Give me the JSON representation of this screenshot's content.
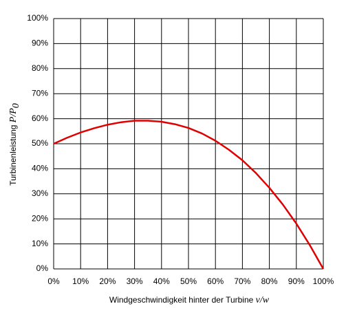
{
  "chart_data": {
    "type": "line",
    "x_label": "Windgeschwindigkeit hinter der Turbine",
    "x_label_math": "v/w",
    "y_label": "Turbinenleistung",
    "y_label_math": "P/P",
    "y_label_math_sub": "0",
    "x": [
      0,
      5,
      10,
      15,
      20,
      25,
      30,
      35,
      40,
      45,
      50,
      55,
      60,
      65,
      70,
      75,
      80,
      85,
      90,
      95,
      100
    ],
    "series": [
      {
        "color": "#e00000",
        "values": [
          50,
          52.4,
          54.5,
          56.2,
          57.6,
          58.6,
          59.2,
          59.2,
          58.8,
          57.8,
          56.3,
          54.1,
          51.2,
          47.6,
          43.4,
          38.3,
          32.4,
          25.7,
          18.1,
          9.5,
          0
        ]
      }
    ],
    "xlim": [
      0,
      100
    ],
    "ylim": [
      0,
      100
    ],
    "xticks": [
      {
        "value": 0,
        "label": "0%"
      },
      {
        "value": 10,
        "label": "10%"
      },
      {
        "value": 20,
        "label": "20%"
      },
      {
        "value": 30,
        "label": "30%"
      },
      {
        "value": 40,
        "label": "40%"
      },
      {
        "value": 50,
        "label": "50%"
      },
      {
        "value": 60,
        "label": "60%"
      },
      {
        "value": 70,
        "label": "70%"
      },
      {
        "value": 80,
        "label": "80%"
      },
      {
        "value": 90,
        "label": "90%"
      },
      {
        "value": 100,
        "label": "100%"
      }
    ],
    "yticks": [
      {
        "value": 0,
        "label": "0%"
      },
      {
        "value": 10,
        "label": "10%"
      },
      {
        "value": 20,
        "label": "20%"
      },
      {
        "value": 30,
        "label": "30%"
      },
      {
        "value": 40,
        "label": "40%"
      },
      {
        "value": 50,
        "label": "50%"
      },
      {
        "value": 60,
        "label": "60%"
      },
      {
        "value": 70,
        "label": "70%"
      },
      {
        "value": 80,
        "label": "80%"
      },
      {
        "value": 90,
        "label": "90%"
      },
      {
        "value": 100,
        "label": "100%"
      }
    ],
    "grid": true
  }
}
